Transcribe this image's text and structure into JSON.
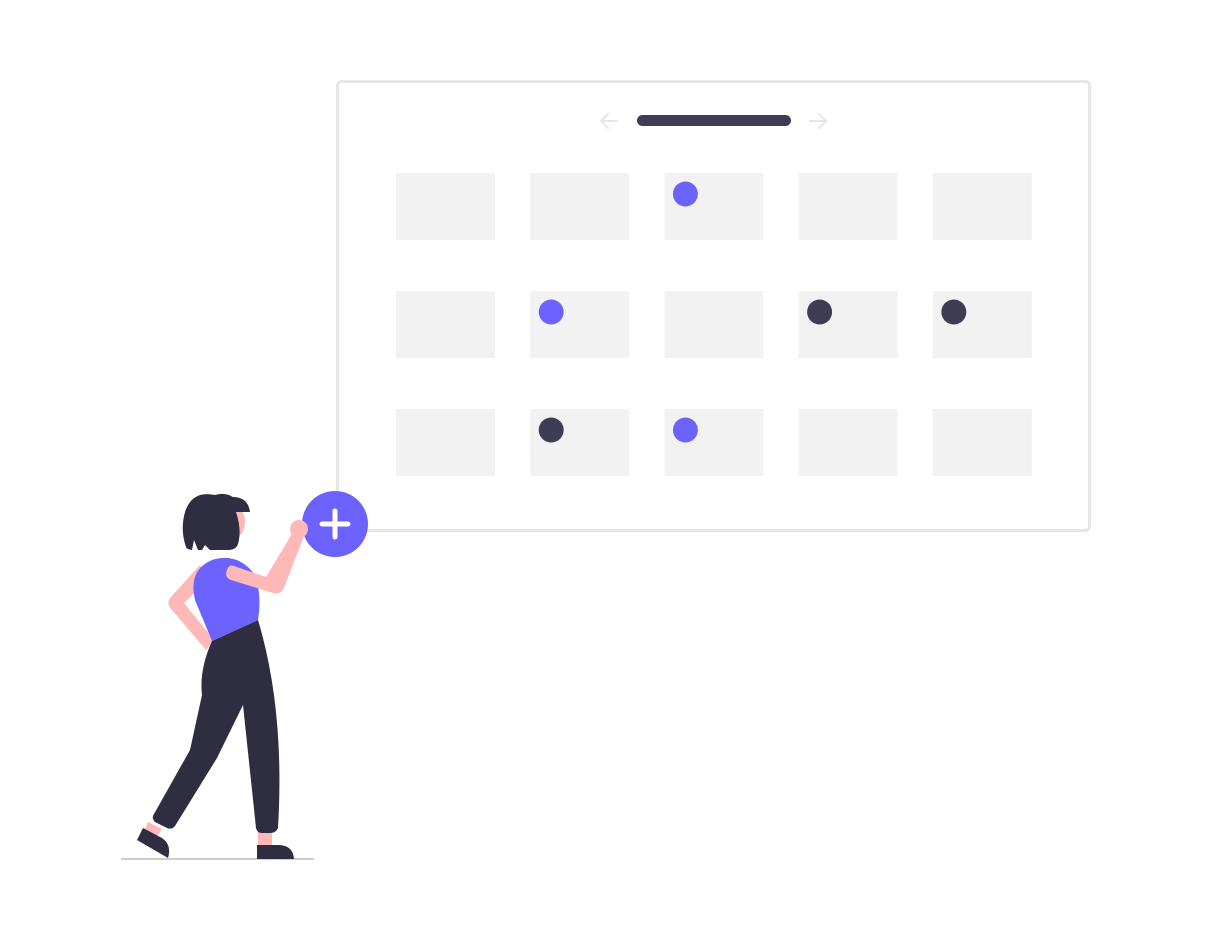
{
  "colors": {
    "accent": "#6C63FF",
    "dark": "#3F3D56",
    "clothing_dark": "#2F2E41",
    "skin": "#FFB8B8",
    "cell": "#F2F2F2",
    "frame": "#E6E6E6",
    "arrow": "#E6E6E6"
  },
  "calendar": {
    "rows": 3,
    "columns": 5,
    "markers": [
      {
        "row": 0,
        "col": 2,
        "color": "accent"
      },
      {
        "row": 1,
        "col": 1,
        "color": "accent"
      },
      {
        "row": 1,
        "col": 3,
        "color": "dark"
      },
      {
        "row": 1,
        "col": 4,
        "color": "dark"
      },
      {
        "row": 2,
        "col": 1,
        "color": "dark"
      },
      {
        "row": 2,
        "col": 2,
        "color": "accent"
      }
    ]
  },
  "icons": {
    "prev": "arrow-left-icon",
    "next": "arrow-right-icon",
    "add": "plus-circle-icon"
  }
}
